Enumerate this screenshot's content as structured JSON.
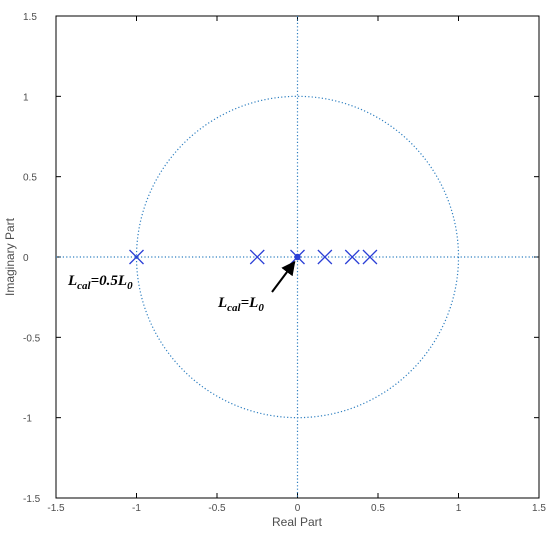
{
  "chart_data": {
    "type": "scatter",
    "title": "",
    "xlabel": "Real Part",
    "ylabel": "Imaginary Part",
    "xlim": [
      -1.5,
      1.5
    ],
    "ylim": [
      -1.5,
      1.5
    ],
    "xticks": [
      -1.5,
      -1,
      -0.5,
      0,
      0.5,
      1,
      1.5
    ],
    "yticks": [
      -1.5,
      -1,
      -0.5,
      0,
      0.5,
      1,
      1.5
    ],
    "xtick_labels": [
      "-1.5",
      "-1",
      "-0.5",
      "0",
      "0.5",
      "1",
      "1.5"
    ],
    "ytick_labels": [
      "-1.5",
      "-1",
      "-0.5",
      "0",
      "0.5",
      "1",
      "1.5"
    ],
    "grid": false,
    "unit_circle": true,
    "axis_lines": true,
    "poles": [
      {
        "x": -1.0,
        "y": 0
      },
      {
        "x": -0.25,
        "y": 0
      },
      {
        "x": 0.0,
        "y": 0
      },
      {
        "x": 0.17,
        "y": 0
      },
      {
        "x": 0.34,
        "y": 0
      },
      {
        "x": 0.45,
        "y": 0
      }
    ],
    "annotations": [
      {
        "text_main": "L",
        "text_sub": "cal",
        "text_rest": "=0.5L",
        "text_sub2": "0",
        "target": [
          -1.0,
          0
        ]
      },
      {
        "text_main": "L",
        "text_sub": "cal",
        "text_rest": "=L",
        "text_sub2": "0",
        "target": [
          0.0,
          0
        ],
        "arrow": true
      }
    ],
    "colors": {
      "marker": "#2b3fd6",
      "circle": "#2e7fc0",
      "axis": "#000000",
      "text": "#4d4d4d"
    }
  }
}
